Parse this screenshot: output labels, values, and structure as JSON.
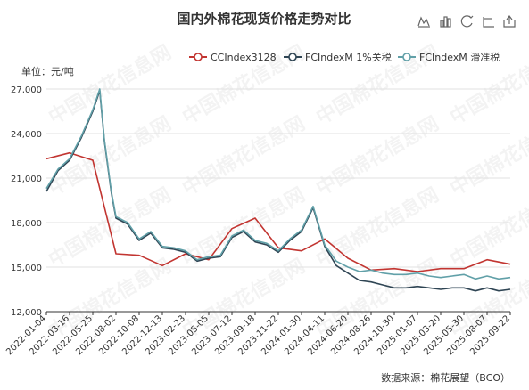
{
  "chart_data": {
    "type": "line",
    "title": "国内外棉花现货价格走势对比",
    "unit_label": "单位：元/吨",
    "source": "数据来源：棉花展望（BCO）",
    "legend_placement": "top-right",
    "grid": true,
    "ylim": [
      12000,
      27000
    ],
    "yticks": [
      "12,000",
      "15,000",
      "18,000",
      "21,000",
      "24,000",
      "27,000"
    ],
    "xticks": [
      "2022-01-04",
      "2022-03-16",
      "2022-05-25",
      "2022-08-02",
      "2022-10-08",
      "2022-12-13",
      "2023-02-23",
      "2023-05-05",
      "2023-07-12",
      "2023-09-18",
      "2023-11-22",
      "2024-01-30",
      "2024-04-11",
      "2024-06-20",
      "2024-08-26",
      "2024-10-30",
      "2025-01-07",
      "2025-03-20",
      "2025-05-30",
      "2025-08-07",
      "2025-09-22"
    ],
    "series": [
      {
        "name": "CCIndex3128",
        "color": "#c23531",
        "x": [
          0,
          1,
          2,
          3,
          4,
          5,
          6,
          7,
          8,
          9,
          10,
          11,
          12,
          13,
          14,
          15,
          16,
          17,
          18,
          19,
          20
        ],
        "y": [
          22300,
          22700,
          22200,
          15900,
          15800,
          15100,
          15900,
          15500,
          17600,
          18300,
          16300,
          16100,
          16900,
          15600,
          14800,
          14900,
          14700,
          14900,
          14900,
          15500,
          15200
        ]
      },
      {
        "name": "FCIndexM 1%关税",
        "color": "#2f4554",
        "x": [
          0,
          0.5,
          1,
          1.5,
          2,
          2.3,
          2.5,
          2.8,
          3,
          3.5,
          4,
          4.5,
          5,
          5.5,
          6,
          6.5,
          7,
          7.5,
          8,
          8.5,
          9,
          9.5,
          10,
          10.5,
          11,
          11.5,
          12,
          12.5,
          13,
          13.5,
          14,
          14.5,
          15,
          15.5,
          16,
          16.5,
          17,
          17.5,
          18,
          18.5,
          19,
          19.5,
          20
        ],
        "y": [
          20100,
          21500,
          22200,
          23700,
          25500,
          26900,
          23500,
          20000,
          18300,
          17900,
          16800,
          17300,
          16300,
          16200,
          16000,
          15400,
          15600,
          15700,
          17000,
          17400,
          16700,
          16500,
          16000,
          16800,
          17400,
          19000,
          16400,
          15100,
          14600,
          14100,
          14000,
          13800,
          13600,
          13600,
          13700,
          13600,
          13500,
          13600,
          13600,
          13400,
          13600,
          13400,
          13500
        ]
      },
      {
        "name": "FCIndexM 滑准税",
        "color": "#61a0a8",
        "x": [
          0,
          0.5,
          1,
          1.5,
          2,
          2.3,
          2.5,
          2.8,
          3,
          3.5,
          4,
          4.5,
          5,
          5.5,
          6,
          6.5,
          7,
          7.5,
          8,
          8.5,
          9,
          9.5,
          10,
          10.5,
          11,
          11.5,
          12,
          12.5,
          13,
          13.5,
          14,
          14.5,
          15,
          15.5,
          16,
          16.5,
          17,
          17.5,
          18,
          18.5,
          19,
          19.5,
          20
        ],
        "y": [
          20300,
          21600,
          22300,
          23800,
          25600,
          27000,
          23600,
          20100,
          18400,
          18000,
          16900,
          17400,
          16400,
          16300,
          16100,
          15500,
          15700,
          15800,
          17100,
          17500,
          16800,
          16600,
          16100,
          16900,
          17500,
          19100,
          16500,
          15400,
          15000,
          14700,
          14800,
          14600,
          14500,
          14500,
          14600,
          14400,
          14300,
          14400,
          14500,
          14200,
          14400,
          14200,
          14300
        ]
      }
    ]
  },
  "watermark": "中国棉花信息网",
  "toolbox": {
    "icons": [
      "line-chart-icon",
      "bar-chart-icon",
      "restore-icon",
      "data-view-icon",
      "save-image-icon"
    ]
  }
}
